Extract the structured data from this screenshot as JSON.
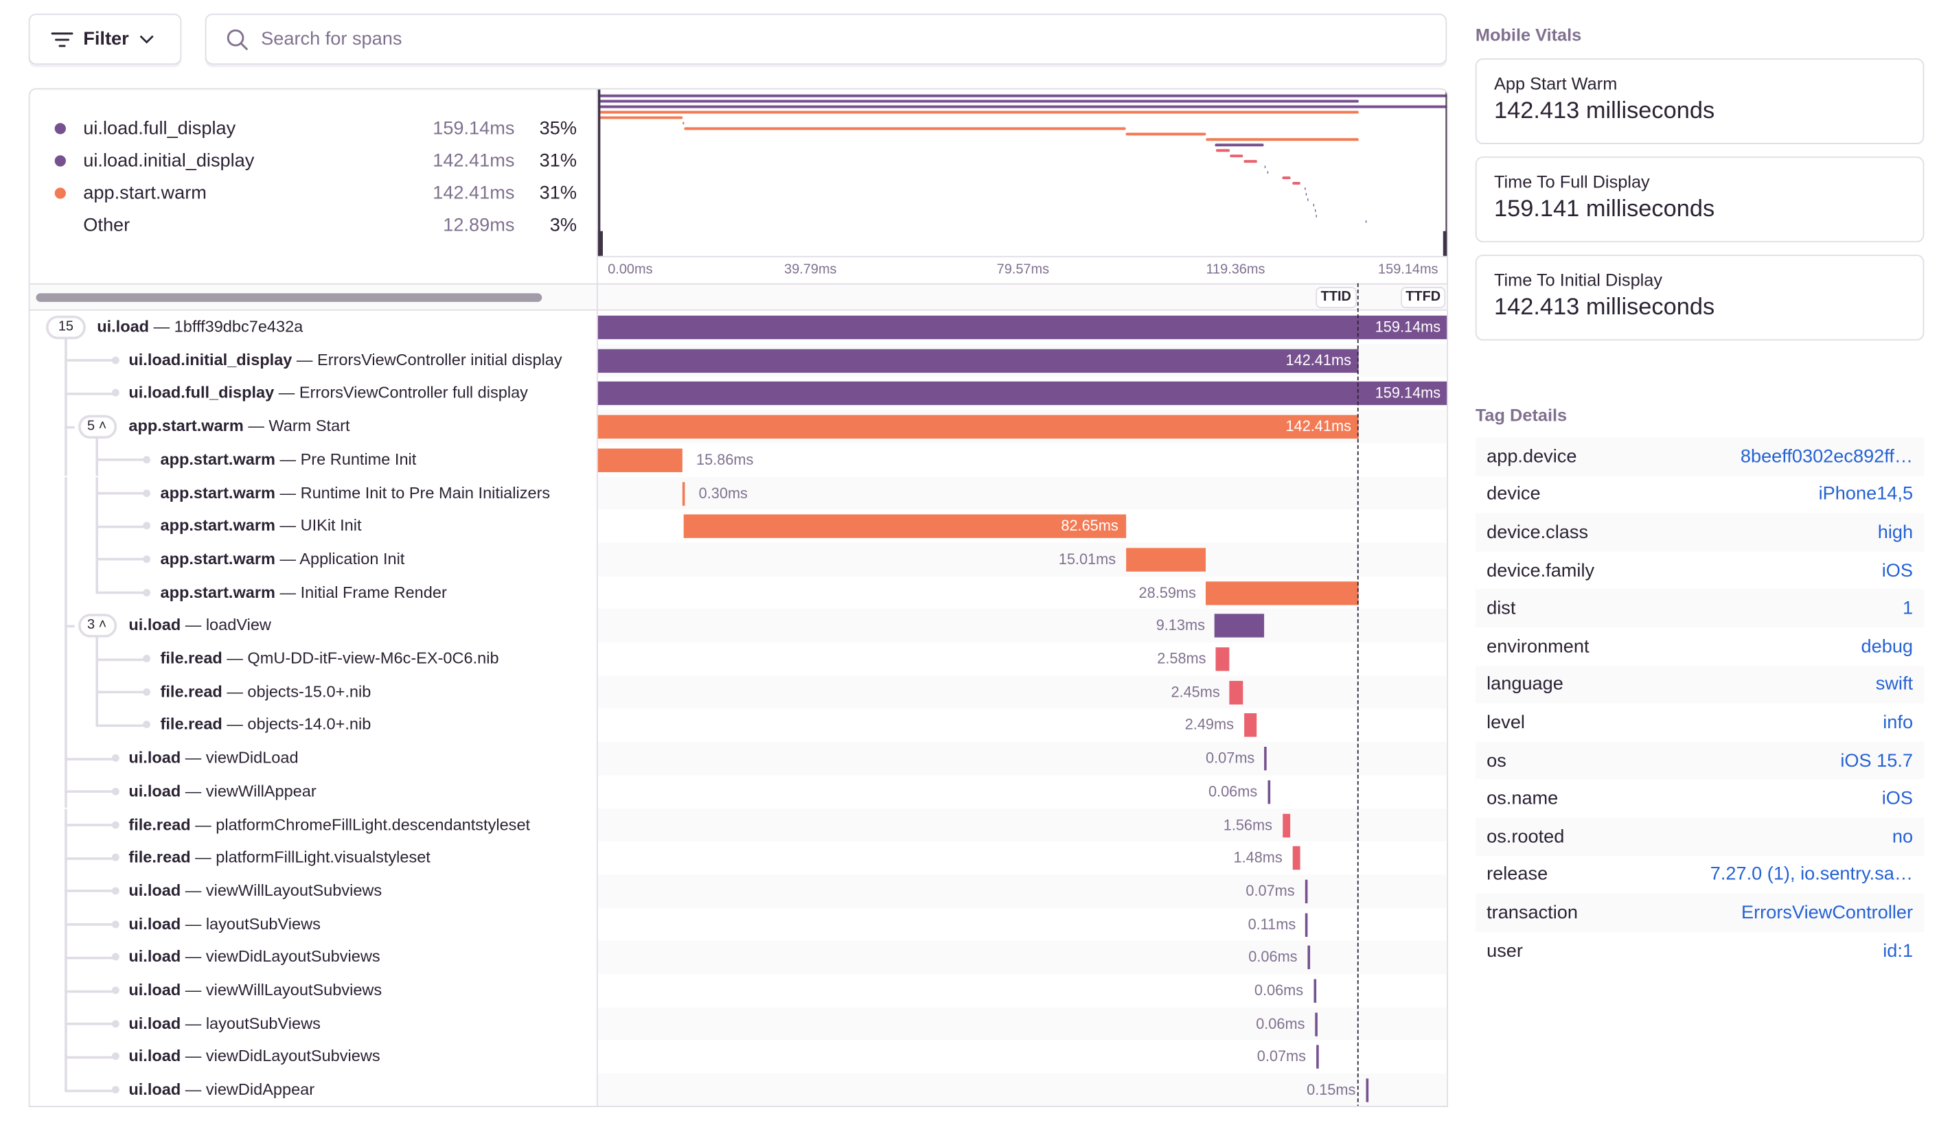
{
  "toolbar": {
    "filter_label": "Filter",
    "search_placeholder": "Search for spans"
  },
  "colors": {
    "ui.load": "#77518f",
    "app.start": "#f27b55",
    "file.read": "#e9626e",
    "text": "#2b2233",
    "muted": "#80708f",
    "link": "#2562d4"
  },
  "legend": [
    {
      "name": "ui.load.full_display",
      "duration": "159.14ms",
      "percent": "35%",
      "color": "#77518f"
    },
    {
      "name": "ui.load.initial_display",
      "duration": "142.41ms",
      "percent": "31%",
      "color": "#77518f"
    },
    {
      "name": "app.start.warm",
      "duration": "142.41ms",
      "percent": "31%",
      "color": "#f27b55"
    },
    {
      "name": "Other",
      "duration": "12.89ms",
      "percent": "3%",
      "color": ""
    }
  ],
  "axis": {
    "total_ms": 159.14,
    "ticks": [
      "0.00ms",
      "39.79ms",
      "79.57ms",
      "119.36ms",
      "159.14ms"
    ]
  },
  "markers": [
    {
      "label": "TTID",
      "at_ms": 142.41
    },
    {
      "label": "TTFD",
      "at_ms": 159.14
    }
  ],
  "spans": [
    {
      "op": "ui.load",
      "desc": "1bfff39dbc7e432a",
      "depth": 0,
      "children": "15",
      "start": 0,
      "dur": 159.14,
      "label": "159.14ms"
    },
    {
      "op": "ui.load.initial_display",
      "desc": "ErrorsViewController initial display",
      "depth": 1,
      "start": 0,
      "dur": 142.41,
      "label": "142.41ms",
      "cat": "ui.load"
    },
    {
      "op": "ui.load.full_display",
      "desc": "ErrorsViewController full display",
      "depth": 1,
      "start": 0,
      "dur": 159.14,
      "label": "159.14ms",
      "cat": "ui.load"
    },
    {
      "op": "app.start.warm",
      "desc": "Warm Start",
      "depth": 1,
      "children": "5",
      "start": 0,
      "dur": 142.41,
      "label": "142.41ms",
      "cat": "app.start"
    },
    {
      "op": "app.start.warm",
      "desc": "Pre Runtime Init",
      "depth": 2,
      "start": 0,
      "dur": 15.86,
      "label": "15.86ms",
      "cat": "app.start"
    },
    {
      "op": "app.start.warm",
      "desc": "Runtime Init to Pre Main Initializers",
      "depth": 2,
      "start": 15.86,
      "dur": 0.3,
      "label": "0.30ms",
      "cat": "app.start"
    },
    {
      "op": "app.start.warm",
      "desc": "UIKit Init",
      "depth": 2,
      "start": 16.16,
      "dur": 82.65,
      "label": "82.65ms",
      "cat": "app.start"
    },
    {
      "op": "app.start.warm",
      "desc": "Application Init",
      "depth": 2,
      "start": 98.81,
      "dur": 15.01,
      "label": "15.01ms",
      "cat": "app.start"
    },
    {
      "op": "app.start.warm",
      "desc": "Initial Frame Render",
      "depth": 2,
      "start": 113.82,
      "dur": 28.59,
      "label": "28.59ms",
      "cat": "app.start"
    },
    {
      "op": "ui.load",
      "desc": "loadView",
      "depth": 1,
      "children": "3",
      "start": 115.5,
      "dur": 9.13,
      "label": "9.13ms",
      "cat": "ui.load"
    },
    {
      "op": "file.read",
      "desc": "QmU-DD-itF-view-M6c-EX-0C6.nib",
      "depth": 2,
      "start": 115.7,
      "dur": 2.58,
      "label": "2.58ms",
      "cat": "file.read"
    },
    {
      "op": "file.read",
      "desc": "objects-15.0+.nib",
      "depth": 2,
      "start": 118.3,
      "dur": 2.45,
      "label": "2.45ms",
      "cat": "file.read"
    },
    {
      "op": "file.read",
      "desc": "objects-14.0+.nib",
      "depth": 2,
      "start": 120.9,
      "dur": 2.49,
      "label": "2.49ms",
      "cat": "file.read"
    },
    {
      "op": "ui.load",
      "desc": "viewDidLoad",
      "depth": 1,
      "start": 124.8,
      "dur": 0.07,
      "label": "0.07ms",
      "cat": "ui.load"
    },
    {
      "op": "ui.load",
      "desc": "viewWillAppear",
      "depth": 1,
      "start": 125.3,
      "dur": 0.06,
      "label": "0.06ms",
      "cat": "ui.load"
    },
    {
      "op": "file.read",
      "desc": "platformChromeFillLight.descendantstyleset",
      "depth": 1,
      "start": 128.1,
      "dur": 1.56,
      "label": "1.56ms",
      "cat": "file.read"
    },
    {
      "op": "file.read",
      "desc": "platformFillLight.visualstyleset",
      "depth": 1,
      "start": 130.0,
      "dur": 1.48,
      "label": "1.48ms",
      "cat": "file.read"
    },
    {
      "op": "ui.load",
      "desc": "viewWillLayoutSubviews",
      "depth": 1,
      "start": 132.3,
      "dur": 0.07,
      "label": "0.07ms",
      "cat": "ui.load"
    },
    {
      "op": "ui.load",
      "desc": "layoutSubViews",
      "depth": 1,
      "start": 132.5,
      "dur": 0.11,
      "label": "0.11ms",
      "cat": "ui.load"
    },
    {
      "op": "ui.load",
      "desc": "viewDidLayoutSubviews",
      "depth": 1,
      "start": 132.8,
      "dur": 0.06,
      "label": "0.06ms",
      "cat": "ui.load"
    },
    {
      "op": "ui.load",
      "desc": "viewWillLayoutSubviews",
      "depth": 1,
      "start": 133.9,
      "dur": 0.06,
      "label": "0.06ms",
      "cat": "ui.load"
    },
    {
      "op": "ui.load",
      "desc": "layoutSubViews",
      "depth": 1,
      "start": 134.2,
      "dur": 0.06,
      "label": "0.06ms",
      "cat": "ui.load"
    },
    {
      "op": "ui.load",
      "desc": "viewDidLayoutSubviews",
      "depth": 1,
      "start": 134.4,
      "dur": 0.07,
      "label": "0.07ms",
      "cat": "ui.load"
    },
    {
      "op": "ui.load",
      "desc": "viewDidAppear",
      "depth": 1,
      "start": 143.7,
      "dur": 0.15,
      "label": "0.15ms",
      "cat": "ui.load"
    }
  ],
  "mobile_vitals": {
    "title": "Mobile Vitals",
    "items": [
      {
        "label": "App Start Warm",
        "value": "142.413 milliseconds"
      },
      {
        "label": "Time To Full Display",
        "value": "159.141 milliseconds"
      },
      {
        "label": "Time To Initial Display",
        "value": "142.413 milliseconds"
      }
    ]
  },
  "tag_details": {
    "title": "Tag Details",
    "items": [
      {
        "key": "app.device",
        "value": "8beeff0302ec892ff…"
      },
      {
        "key": "device",
        "value": "iPhone14,5"
      },
      {
        "key": "device.class",
        "value": "high"
      },
      {
        "key": "device.family",
        "value": "iOS"
      },
      {
        "key": "dist",
        "value": "1"
      },
      {
        "key": "environment",
        "value": "debug"
      },
      {
        "key": "language",
        "value": "swift"
      },
      {
        "key": "level",
        "value": "info"
      },
      {
        "key": "os",
        "value": "iOS 15.7"
      },
      {
        "key": "os.name",
        "value": "iOS"
      },
      {
        "key": "os.rooted",
        "value": "no"
      },
      {
        "key": "release",
        "value": "7.27.0 (1), io.sentry.sa…"
      },
      {
        "key": "transaction",
        "value": "ErrorsViewController"
      },
      {
        "key": "user",
        "value": "id:1"
      }
    ]
  }
}
